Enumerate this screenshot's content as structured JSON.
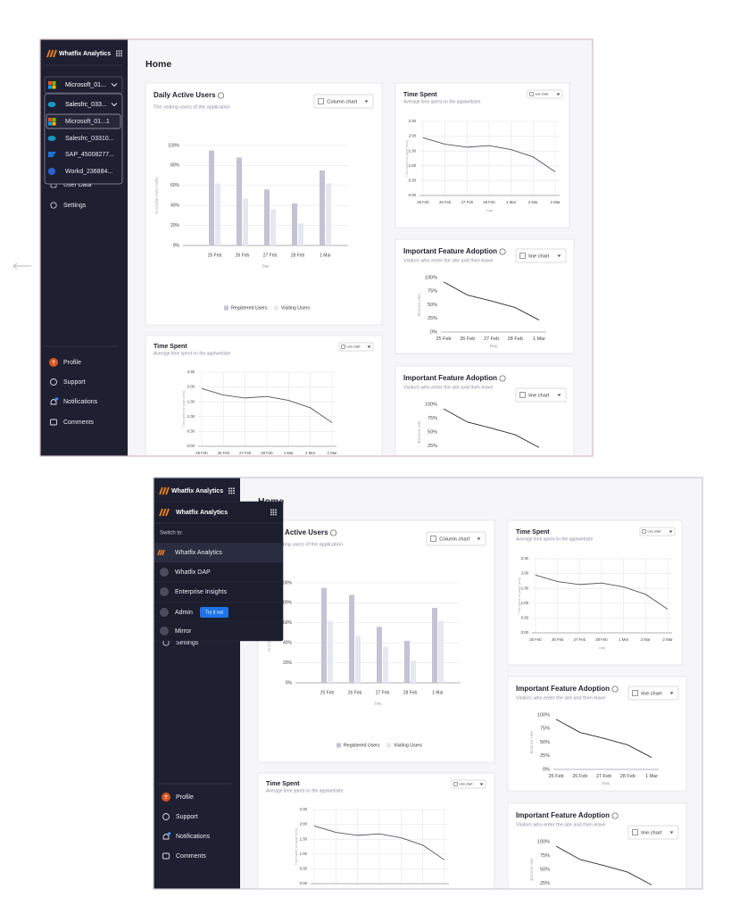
{
  "sidebar": {
    "brand": "Whatfix Analytics",
    "account": "Microsoft_01...",
    "workspace": "Salesfrc_033...",
    "apps": [
      "Microsoft_01...1",
      "Salesfrc_03310...",
      "SAP_45008277...",
      "Workd_236884..."
    ],
    "nav": [
      "User Data",
      "Settings"
    ],
    "avatar": "T",
    "footer": [
      "Profile",
      "Support",
      "Notifications",
      "Comments"
    ]
  },
  "page_title": "Home",
  "switcher": {
    "title": "Whatfix Analytics",
    "label": "Switch to:",
    "items": [
      "Whatfix Analytics",
      "Whatfix DAP",
      "Enterprise Insights",
      "Admin",
      "Mirror"
    ],
    "badge": "Try it out"
  },
  "charts": {
    "daily_active_users": {
      "type": "bar",
      "title": "Daily Active Users",
      "subtitle": "The visiting users of the application",
      "control": "Column chart",
      "y_label": "% of total visitor traffic",
      "x_label": "Day",
      "categories": [
        "25 Feb",
        "26 Feb",
        "27 Feb",
        "28 Feb",
        "1 Mar"
      ],
      "series": [
        {
          "name": "Registered Users",
          "color": "#c4c2d3",
          "values": [
            95,
            88,
            56,
            42,
            75
          ]
        },
        {
          "name": "Visiting Users",
          "color": "#e7e7ef",
          "values": [
            62,
            47,
            36,
            22,
            62
          ]
        }
      ],
      "ylim": [
        0,
        100
      ],
      "yticks": [
        {
          "value": 0,
          "label": "0%"
        },
        {
          "value": 20,
          "label": "20%"
        },
        {
          "value": 40,
          "label": "40%"
        },
        {
          "value": 60,
          "label": "60%"
        },
        {
          "value": 80,
          "label": "80%"
        },
        {
          "value": 100,
          "label": "100%"
        }
      ],
      "grid": true
    },
    "time_spent": {
      "type": "line",
      "title": "Time Spent",
      "subtitle": "Average time spent on the app/website",
      "control": "Line chart",
      "y_label": "Time spent on page (min)",
      "x_label": "Day",
      "categories": [
        "25 Feb",
        "26 Feb",
        "27 Feb",
        "28 Feb",
        "1 Mar",
        "2 Mar",
        "2 Mar"
      ],
      "values": [
        1.95,
        1.73,
        1.63,
        1.68,
        1.55,
        1.3,
        0.8
      ],
      "color": "#55555f",
      "ylim": [
        0,
        2.5
      ],
      "yticks": [
        {
          "value": 0,
          "label": "0:00"
        },
        {
          "value": 0.5,
          "label": "0:30"
        },
        {
          "value": 1,
          "label": "1:00"
        },
        {
          "value": 1.5,
          "label": "1:30"
        },
        {
          "value": 2,
          "label": "2:00"
        },
        {
          "value": 2.5,
          "label": "2:30"
        }
      ],
      "grid": true
    },
    "feature_adoption": {
      "type": "line",
      "title": "Important Feature Adoption",
      "subtitle": "Visitors who enter the site and then leave",
      "control": "line chart",
      "y_label": "Bounce rate",
      "x_label": "Day",
      "categories": [
        "25 Feb",
        "26 Feb",
        "27 Feb",
        "28 Feb",
        "1 Mar"
      ],
      "values": [
        92,
        68,
        57,
        45,
        22
      ],
      "color": "#2b2b35",
      "ylim": [
        0,
        100
      ],
      "yticks": [
        {
          "value": 0,
          "label": "0%"
        },
        {
          "value": 25,
          "label": "25%"
        },
        {
          "value": 50,
          "label": "50%"
        },
        {
          "value": 75,
          "label": "75%"
        },
        {
          "value": 100,
          "label": "100%"
        }
      ],
      "grid": false
    }
  }
}
